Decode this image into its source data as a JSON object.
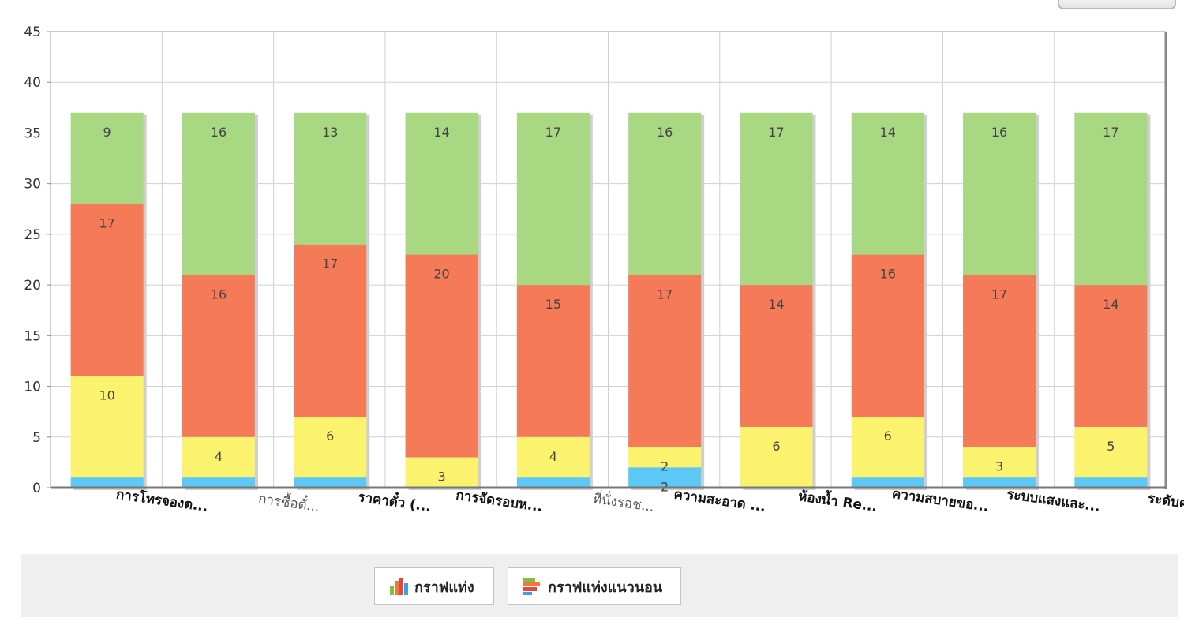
{
  "chart_data": {
    "type": "bar",
    "stacked": true,
    "categories": [
      "การโทรจองต...",
      "การซื้อตั๋...",
      "ราคาตั๋ว (...",
      "การจัดรอบห...",
      "ที่นั่งรอช...",
      "ความสะอาด ...",
      "ห้องน้ำ Re...",
      "ความสบายขอ...",
      "ระบบแสงและ...",
      "ระดับความ"
    ],
    "series": [
      {
        "color": "#5bc8f5",
        "values": [
          1,
          1,
          1,
          0,
          1,
          2,
          0,
          1,
          1,
          1
        ]
      },
      {
        "color": "#fbf26d",
        "values": [
          10,
          4,
          6,
          3,
          4,
          2,
          6,
          6,
          3,
          5
        ]
      },
      {
        "color": "#f47a58",
        "values": [
          17,
          16,
          17,
          20,
          15,
          17,
          14,
          16,
          17,
          14
        ]
      },
      {
        "color": "#a9d883",
        "values": [
          9,
          16,
          13,
          14,
          17,
          16,
          17,
          14,
          16,
          17
        ]
      }
    ],
    "ylim": [
      0,
      45
    ],
    "yticks": [
      0,
      5,
      10,
      15,
      20,
      25,
      30,
      35,
      40,
      45
    ],
    "grid": true,
    "xlabel": "",
    "ylabel": ""
  },
  "toolbar": {
    "bar_chart_label": "กราฟแท่ง",
    "horizontal_bar_chart_label": "กราฟแท่งแนวนอน"
  }
}
